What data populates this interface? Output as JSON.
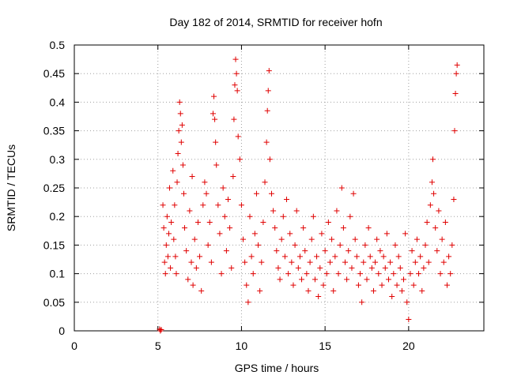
{
  "chart_data": {
    "type": "scatter",
    "title": "Day 182 of 2014, SRMTID for receiver hofn",
    "xlabel": "GPS time / hours",
    "ylabel": "SRMTID / TECUs",
    "xlim": [
      0,
      24.5
    ],
    "ylim": [
      0,
      0.5
    ],
    "xticks": [
      0,
      5,
      10,
      15,
      20
    ],
    "xtick_labels": [
      "0",
      "5",
      "10",
      "15",
      "20"
    ],
    "yticks": [
      0,
      0.05,
      0.1,
      0.15,
      0.2,
      0.25,
      0.3,
      0.35,
      0.4,
      0.45,
      0.5
    ],
    "ytick_labels": [
      "0",
      "0.05",
      "0.1",
      "0.15",
      "0.2",
      "0.25",
      "0.3",
      "0.35",
      "0.4",
      "0.45",
      "0.5"
    ],
    "grid": true,
    "marker": "plus",
    "color": "#e00000",
    "series": [
      {
        "name": "SRMTID",
        "points": [
          [
            5.1,
            0.003
          ],
          [
            5.15,
            0.0
          ],
          [
            5.2,
            0.002
          ],
          [
            5.3,
            0.22
          ],
          [
            5.35,
            0.18
          ],
          [
            5.4,
            0.12
          ],
          [
            5.45,
            0.1
          ],
          [
            5.5,
            0.15
          ],
          [
            5.55,
            0.2
          ],
          [
            5.6,
            0.13
          ],
          [
            5.65,
            0.17
          ],
          [
            5.7,
            0.25
          ],
          [
            5.75,
            0.11
          ],
          [
            5.8,
            0.19
          ],
          [
            5.9,
            0.28
          ],
          [
            5.95,
            0.16
          ],
          [
            6.0,
            0.22
          ],
          [
            6.05,
            0.13
          ],
          [
            6.1,
            0.1
          ],
          [
            6.15,
            0.26
          ],
          [
            6.2,
            0.31
          ],
          [
            6.25,
            0.35
          ],
          [
            6.3,
            0.4
          ],
          [
            6.35,
            0.38
          ],
          [
            6.4,
            0.33
          ],
          [
            6.45,
            0.36
          ],
          [
            6.5,
            0.29
          ],
          [
            6.55,
            0.24
          ],
          [
            6.6,
            0.18
          ],
          [
            6.7,
            0.14
          ],
          [
            6.8,
            0.09
          ],
          [
            6.9,
            0.21
          ],
          [
            7.0,
            0.12
          ],
          [
            7.05,
            0.27
          ],
          [
            7.1,
            0.08
          ],
          [
            7.2,
            0.16
          ],
          [
            7.3,
            0.11
          ],
          [
            7.4,
            0.19
          ],
          [
            7.5,
            0.13
          ],
          [
            7.6,
            0.07
          ],
          [
            7.7,
            0.22
          ],
          [
            7.8,
            0.26
          ],
          [
            7.9,
            0.24
          ],
          [
            8.0,
            0.15
          ],
          [
            8.1,
            0.19
          ],
          [
            8.2,
            0.12
          ],
          [
            8.3,
            0.38
          ],
          [
            8.35,
            0.41
          ],
          [
            8.4,
            0.37
          ],
          [
            8.45,
            0.33
          ],
          [
            8.5,
            0.29
          ],
          [
            8.6,
            0.22
          ],
          [
            8.7,
            0.17
          ],
          [
            8.8,
            0.1
          ],
          [
            8.9,
            0.25
          ],
          [
            9.0,
            0.2
          ],
          [
            9.1,
            0.14
          ],
          [
            9.2,
            0.23
          ],
          [
            9.3,
            0.18
          ],
          [
            9.4,
            0.11
          ],
          [
            9.5,
            0.27
          ],
          [
            9.55,
            0.37
          ],
          [
            9.6,
            0.43
          ],
          [
            9.65,
            0.475
          ],
          [
            9.7,
            0.45
          ],
          [
            9.75,
            0.42
          ],
          [
            9.8,
            0.34
          ],
          [
            9.9,
            0.3
          ],
          [
            10.0,
            0.22
          ],
          [
            10.1,
            0.16
          ],
          [
            10.2,
            0.12
          ],
          [
            10.3,
            0.08
          ],
          [
            10.4,
            0.05
          ],
          [
            10.5,
            0.2
          ],
          [
            10.6,
            0.13
          ],
          [
            10.7,
            0.1
          ],
          [
            10.8,
            0.17
          ],
          [
            10.9,
            0.24
          ],
          [
            11.0,
            0.15
          ],
          [
            11.1,
            0.07
          ],
          [
            11.2,
            0.12
          ],
          [
            11.3,
            0.19
          ],
          [
            11.4,
            0.26
          ],
          [
            11.5,
            0.33
          ],
          [
            11.55,
            0.385
          ],
          [
            11.6,
            0.42
          ],
          [
            11.65,
            0.455
          ],
          [
            11.7,
            0.3
          ],
          [
            11.8,
            0.24
          ],
          [
            11.9,
            0.21
          ],
          [
            12.0,
            0.18
          ],
          [
            12.1,
            0.14
          ],
          [
            12.2,
            0.11
          ],
          [
            12.3,
            0.09
          ],
          [
            12.4,
            0.16
          ],
          [
            12.5,
            0.2
          ],
          [
            12.6,
            0.13
          ],
          [
            12.7,
            0.23
          ],
          [
            12.8,
            0.1
          ],
          [
            12.9,
            0.17
          ],
          [
            13.0,
            0.12
          ],
          [
            13.1,
            0.08
          ],
          [
            13.2,
            0.15
          ],
          [
            13.3,
            0.21
          ],
          [
            13.4,
            0.11
          ],
          [
            13.5,
            0.13
          ],
          [
            13.6,
            0.09
          ],
          [
            13.7,
            0.18
          ],
          [
            13.8,
            0.14
          ],
          [
            13.9,
            0.1
          ],
          [
            14.0,
            0.07
          ],
          [
            14.1,
            0.12
          ],
          [
            14.2,
            0.16
          ],
          [
            14.3,
            0.2
          ],
          [
            14.4,
            0.09
          ],
          [
            14.5,
            0.13
          ],
          [
            14.6,
            0.06
          ],
          [
            14.7,
            0.11
          ],
          [
            14.8,
            0.17
          ],
          [
            14.9,
            0.08
          ],
          [
            15.0,
            0.14
          ],
          [
            15.1,
            0.1
          ],
          [
            15.2,
            0.19
          ],
          [
            15.3,
            0.12
          ],
          [
            15.4,
            0.16
          ],
          [
            15.5,
            0.07
          ],
          [
            15.6,
            0.13
          ],
          [
            15.7,
            0.21
          ],
          [
            15.8,
            0.1
          ],
          [
            15.9,
            0.15
          ],
          [
            16.0,
            0.25
          ],
          [
            16.1,
            0.18
          ],
          [
            16.2,
            0.12
          ],
          [
            16.3,
            0.09
          ],
          [
            16.4,
            0.14
          ],
          [
            16.5,
            0.2
          ],
          [
            16.6,
            0.11
          ],
          [
            16.7,
            0.24
          ],
          [
            16.8,
            0.16
          ],
          [
            16.9,
            0.13
          ],
          [
            17.0,
            0.08
          ],
          [
            17.1,
            0.1
          ],
          [
            17.2,
            0.05
          ],
          [
            17.3,
            0.12
          ],
          [
            17.4,
            0.15
          ],
          [
            17.5,
            0.09
          ],
          [
            17.6,
            0.18
          ],
          [
            17.7,
            0.13
          ],
          [
            17.8,
            0.11
          ],
          [
            17.9,
            0.07
          ],
          [
            18.0,
            0.12
          ],
          [
            18.1,
            0.16
          ],
          [
            18.2,
            0.1
          ],
          [
            18.3,
            0.14
          ],
          [
            18.4,
            0.08
          ],
          [
            18.5,
            0.13
          ],
          [
            18.6,
            0.11
          ],
          [
            18.7,
            0.17
          ],
          [
            18.8,
            0.09
          ],
          [
            18.9,
            0.12
          ],
          [
            19.0,
            0.06
          ],
          [
            19.1,
            0.1
          ],
          [
            19.2,
            0.15
          ],
          [
            19.3,
            0.08
          ],
          [
            19.4,
            0.13
          ],
          [
            19.5,
            0.11
          ],
          [
            19.6,
            0.07
          ],
          [
            19.7,
            0.09
          ],
          [
            19.8,
            0.17
          ],
          [
            19.9,
            0.05
          ],
          [
            20.0,
            0.02
          ],
          [
            20.1,
            0.1
          ],
          [
            20.2,
            0.14
          ],
          [
            20.3,
            0.08
          ],
          [
            20.4,
            0.12
          ],
          [
            20.5,
            0.16
          ],
          [
            20.6,
            0.1
          ],
          [
            20.7,
            0.13
          ],
          [
            20.8,
            0.07
          ],
          [
            20.9,
            0.11
          ],
          [
            21.0,
            0.15
          ],
          [
            21.1,
            0.19
          ],
          [
            21.2,
            0.12
          ],
          [
            21.3,
            0.22
          ],
          [
            21.4,
            0.26
          ],
          [
            21.45,
            0.3
          ],
          [
            21.5,
            0.24
          ],
          [
            21.6,
            0.18
          ],
          [
            21.7,
            0.14
          ],
          [
            21.8,
            0.21
          ],
          [
            21.9,
            0.1
          ],
          [
            22.0,
            0.16
          ],
          [
            22.1,
            0.12
          ],
          [
            22.2,
            0.19
          ],
          [
            22.3,
            0.08
          ],
          [
            22.4,
            0.13
          ],
          [
            22.5,
            0.1
          ],
          [
            22.6,
            0.15
          ],
          [
            22.7,
            0.23
          ],
          [
            22.75,
            0.35
          ],
          [
            22.8,
            0.415
          ],
          [
            22.85,
            0.45
          ],
          [
            22.9,
            0.465
          ]
        ]
      }
    ]
  }
}
